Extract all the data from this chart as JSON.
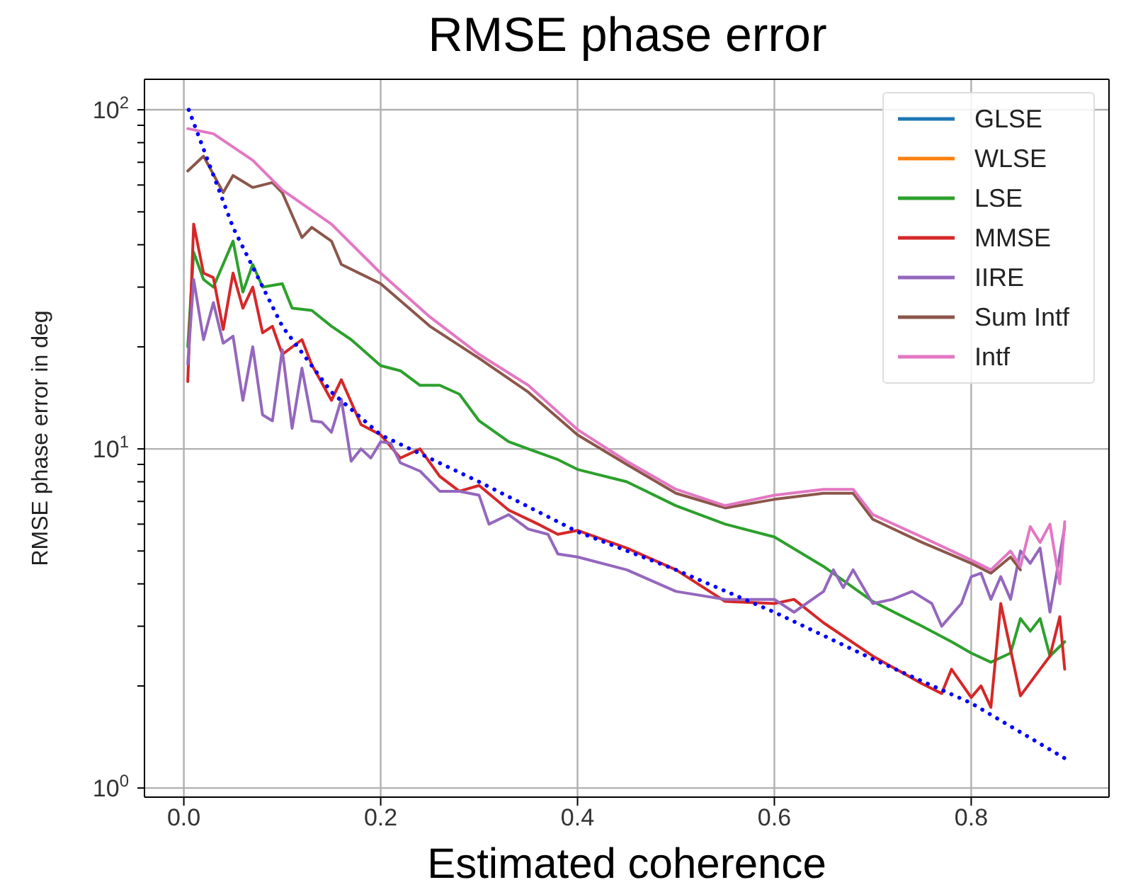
{
  "chart_data": {
    "type": "line",
    "title": "RMSE phase error",
    "xlabel": "Estimated coherence",
    "ylabel": "RMSE phase error in deg",
    "log": "y",
    "grid": true,
    "legend": "top right",
    "marker": "none",
    "line_style": "solid",
    "xlim": [
      -0.04,
      0.94
    ],
    "xticks": [
      {
        "value": 0,
        "label": "0.0"
      },
      {
        "value": 0.2,
        "label": "0.2"
      },
      {
        "value": 0.4,
        "label": "0.4"
      },
      {
        "value": 0.6,
        "label": "0.6"
      },
      {
        "value": 0.8,
        "label": "0.8"
      }
    ],
    "ylim": [
      0.94,
      123
    ],
    "yticks": [
      {
        "value": 1,
        "label": "10$^{0}$"
      },
      {
        "value": 2,
        "label": null
      },
      {
        "value": 3,
        "label": null
      },
      {
        "value": 4,
        "label": null
      },
      {
        "value": 5,
        "label": null
      },
      {
        "value": 6,
        "label": null
      },
      {
        "value": 7,
        "label": null
      },
      {
        "value": 8,
        "label": null
      },
      {
        "value": 9,
        "label": null
      },
      {
        "value": 10,
        "label": "10$^{1}$"
      },
      {
        "value": 20,
        "label": null
      },
      {
        "value": 30,
        "label": null
      },
      {
        "value": 40,
        "label": null
      },
      {
        "value": 50,
        "label": null
      },
      {
        "value": 60,
        "label": null
      },
      {
        "value": 70,
        "label": null
      },
      {
        "value": 80,
        "label": null
      },
      {
        "value": 90,
        "label": null
      },
      {
        "value": 100,
        "label": "10$^{2}$"
      }
    ],
    "series": [
      {
        "name": "GLSE",
        "color": "#1f77b4"
      },
      {
        "name": "WLSE",
        "color": "#ff7f0e"
      },
      {
        "name": "LSE",
        "color": "#2ca02c",
        "x": [
          0.004,
          0.01,
          0.02,
          0.03,
          0.05,
          0.06,
          0.07,
          0.08,
          0.1,
          0.11,
          0.13,
          0.15,
          0.17,
          0.2,
          0.22,
          0.24,
          0.26,
          0.28,
          0.3,
          0.33,
          0.35,
          0.38,
          0.4,
          0.45,
          0.5,
          0.55,
          0.6,
          0.65,
          0.7,
          0.75,
          0.78,
          0.8,
          0.82,
          0.84,
          0.85,
          0.86,
          0.87,
          0.88,
          0.895
        ],
        "values": [
          20,
          38,
          31.6,
          30,
          41,
          29,
          35,
          30,
          30.7,
          26,
          25.6,
          23,
          21,
          17.6,
          17,
          15.4,
          15.4,
          14.5,
          12.1,
          10.5,
          10,
          9.3,
          8.7,
          8,
          6.8,
          6,
          5.5,
          4.5,
          3.55,
          3,
          2.7,
          2.5,
          2.35,
          2.5,
          3.16,
          2.9,
          3.16,
          2.45,
          2.7
        ]
      },
      {
        "name": "MMSE",
        "color": "#d62728",
        "x": [
          0.004,
          0.01,
          0.02,
          0.03,
          0.04,
          0.05,
          0.06,
          0.07,
          0.08,
          0.09,
          0.1,
          0.12,
          0.13,
          0.15,
          0.16,
          0.18,
          0.2,
          0.22,
          0.24,
          0.26,
          0.28,
          0.3,
          0.33,
          0.36,
          0.38,
          0.4,
          0.45,
          0.5,
          0.55,
          0.6,
          0.62,
          0.65,
          0.7,
          0.75,
          0.77,
          0.78,
          0.8,
          0.81,
          0.82,
          0.83,
          0.85,
          0.87,
          0.88,
          0.89,
          0.895
        ],
        "values": [
          15.8,
          46,
          33,
          32,
          22.5,
          33,
          26,
          30,
          22,
          23,
          19,
          21,
          17.7,
          13.9,
          16,
          11.8,
          11,
          9.4,
          10,
          8.3,
          7.5,
          7.8,
          6.6,
          6,
          5.6,
          5.75,
          5.1,
          4.4,
          3.55,
          3.5,
          3.6,
          3.07,
          2.45,
          2.03,
          1.9,
          2.24,
          1.85,
          2,
          1.73,
          3.5,
          1.87,
          2.24,
          2.45,
          3.2,
          2.24
        ]
      },
      {
        "name": "IIRE",
        "color": "#9467bd",
        "x": [
          0.004,
          0.01,
          0.02,
          0.03,
          0.04,
          0.05,
          0.06,
          0.07,
          0.08,
          0.09,
          0.1,
          0.11,
          0.12,
          0.13,
          0.14,
          0.15,
          0.16,
          0.17,
          0.18,
          0.19,
          0.2,
          0.21,
          0.22,
          0.24,
          0.26,
          0.28,
          0.3,
          0.31,
          0.33,
          0.35,
          0.37,
          0.38,
          0.4,
          0.45,
          0.5,
          0.55,
          0.6,
          0.62,
          0.65,
          0.66,
          0.67,
          0.68,
          0.7,
          0.72,
          0.74,
          0.76,
          0.77,
          0.79,
          0.8,
          0.81,
          0.82,
          0.83,
          0.84,
          0.85,
          0.86,
          0.87,
          0.88,
          0.895
        ],
        "values": [
          17.8,
          31.6,
          21,
          27,
          20.5,
          21.5,
          13.9,
          20,
          12.6,
          12.1,
          19.6,
          11.5,
          17.3,
          12.1,
          12,
          11.2,
          14,
          9.2,
          10,
          9.4,
          10.5,
          10.4,
          9.1,
          8.6,
          7.5,
          7.5,
          7.3,
          6,
          6.4,
          5.8,
          5.6,
          4.9,
          4.8,
          4.4,
          3.8,
          3.6,
          3.6,
          3.3,
          3.8,
          4.4,
          3.9,
          4.4,
          3.5,
          3.6,
          3.8,
          3.5,
          3,
          3.5,
          4.2,
          4.3,
          3.6,
          4.2,
          3.6,
          5,
          4.6,
          5.1,
          3.3,
          5.9
        ]
      },
      {
        "name": "Sum Intf",
        "color": "#8c564b",
        "x": [
          0.004,
          0.02,
          0.04,
          0.05,
          0.07,
          0.09,
          0.1,
          0.12,
          0.13,
          0.15,
          0.16,
          0.2,
          0.25,
          0.3,
          0.35,
          0.4,
          0.45,
          0.5,
          0.55,
          0.6,
          0.65,
          0.68,
          0.7,
          0.75,
          0.8,
          0.82,
          0.84,
          0.85
        ],
        "values": [
          66,
          73,
          57,
          64,
          59,
          61,
          57,
          42,
          45,
          41,
          35,
          30.7,
          23,
          18.5,
          14.7,
          11,
          9,
          7.4,
          6.7,
          7.1,
          7.4,
          7.4,
          6.2,
          5.3,
          4.6,
          4.3,
          4.8,
          4.4
        ]
      },
      {
        "name": "Intf",
        "color": "#e377c2",
        "x": [
          0.004,
          0.03,
          0.07,
          0.1,
          0.15,
          0.2,
          0.25,
          0.3,
          0.35,
          0.4,
          0.45,
          0.5,
          0.55,
          0.6,
          0.65,
          0.68,
          0.7,
          0.75,
          0.8,
          0.82,
          0.84,
          0.85,
          0.86,
          0.87,
          0.88,
          0.89,
          0.895
        ],
        "values": [
          88,
          85,
          71,
          58,
          46,
          33,
          24.5,
          19,
          15.4,
          11.4,
          9.2,
          7.6,
          6.8,
          7.3,
          7.6,
          7.6,
          6.4,
          5.5,
          4.7,
          4.4,
          5,
          4.5,
          5.9,
          5.3,
          6,
          4,
          6.1
        ]
      },
      {
        "color": "#0000ff",
        "line_style": "dotted",
        "x": [
          0.005,
          0.05,
          0.1,
          0.15,
          0.2,
          0.3,
          0.4,
          0.5,
          0.6,
          0.7,
          0.8,
          0.9
        ],
        "values": [
          100,
          45,
          23,
          14.7,
          11,
          8,
          5.7,
          4.4,
          3.3,
          2.4,
          1.78,
          1.2
        ]
      }
    ]
  }
}
